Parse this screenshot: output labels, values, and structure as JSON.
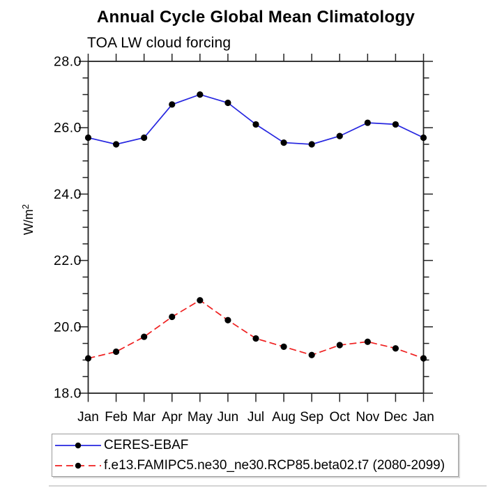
{
  "chart_data": {
    "type": "line",
    "title": "Annual Cycle Global Mean Climatology",
    "subtitle": "TOA LW cloud forcing",
    "ylabel_base": "W/m",
    "ylabel_exponent": "2",
    "categories": [
      "Jan",
      "Feb",
      "Mar",
      "Apr",
      "May",
      "Jun",
      "Jul",
      "Aug",
      "Sep",
      "Oct",
      "Nov",
      "Dec",
      "Jan"
    ],
    "ylim": [
      18.0,
      28.0
    ],
    "ytick_step": 2.0,
    "ytick_minor_step": 0.5,
    "ytick_decimals": 1,
    "grid": false,
    "legend_position": "bottom-left-box",
    "axis_color": "#222222",
    "text_color": "#000000",
    "series": [
      {
        "name": "CERES-EBAF",
        "line_style": "solid",
        "line_color": "#2626e0",
        "marker": "filled-circle",
        "marker_color": "#000000",
        "values": [
          25.7,
          25.5,
          25.7,
          26.7,
          27.0,
          26.75,
          26.1,
          25.55,
          25.5,
          25.75,
          26.15,
          26.1,
          25.7
        ]
      },
      {
        "name": "f.e13.FAMIPC5.ne30_ne30.RCP85.beta02.t7 (2080-2099)",
        "line_style": "dashed",
        "line_color": "#ef1f1f",
        "marker": "filled-circle",
        "marker_color": "#000000",
        "values": [
          19.05,
          19.25,
          19.7,
          20.3,
          20.8,
          20.2,
          19.65,
          19.4,
          19.15,
          19.45,
          19.55,
          19.35,
          19.05
        ]
      }
    ]
  }
}
